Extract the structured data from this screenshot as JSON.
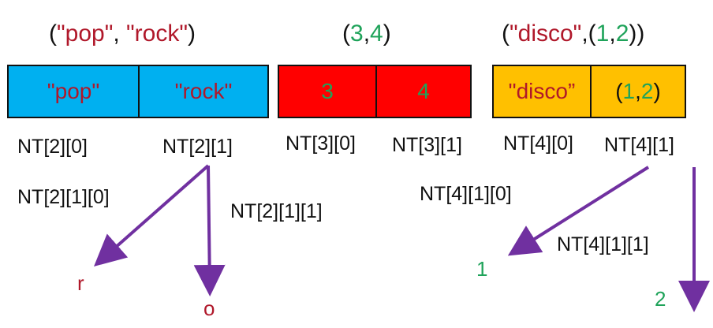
{
  "headings": {
    "t2": {
      "open": "(",
      "a": "\"pop\"",
      "sep": ", ",
      "b": "\"rock\"",
      "close": ")"
    },
    "t3": {
      "open": "(",
      "a": "3",
      "sep": ",",
      "b": "4",
      "close": ")"
    },
    "t4": {
      "open": "(",
      "a": "\"disco\"",
      "sep": ",(",
      "b1": "1",
      "comma": ",",
      "b2": "2",
      "close": "))"
    }
  },
  "cells": {
    "pop": "\"pop\"",
    "rock": "\"rock\"",
    "three": "3",
    "four": "4",
    "disco": "\"disco”",
    "pair": {
      "open": "(",
      "a": "1",
      "sep": ",",
      "b": "2",
      "close": ")"
    }
  },
  "colors": {
    "blue_box": "#00b0f0",
    "red_box": "#ff0000",
    "gold_box": "#ffc000",
    "arrow": "#7030a0",
    "red_text": "#b0182a",
    "green_text": "#1fa35a"
  },
  "labels": {
    "nt20": "NT[2][0]",
    "nt21": "NT[2][1]",
    "nt30": "NT[3][0]",
    "nt31": "NT[3][1]",
    "nt40": "NT[4][0]",
    "nt41": "NT[4][1]",
    "nt210": "NT[2][1][0]",
    "nt211": "NT[2][1][1]",
    "nt410": "NT[4][1][0]",
    "nt411": "NT[4][1][1]"
  },
  "leaves": {
    "r": "r",
    "o": "o",
    "one": "1",
    "two": "2"
  }
}
